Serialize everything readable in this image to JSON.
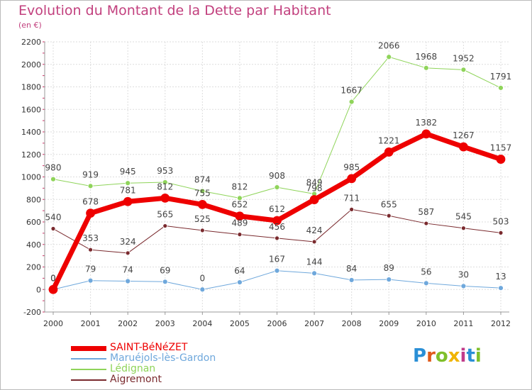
{
  "header": {
    "title": "Evolution du Montant de la Dette par Habitant",
    "subtitle": "(en €)"
  },
  "logo": {
    "text": "Proxiti"
  },
  "chart_data": {
    "type": "line",
    "title": "Evolution du Montant de la Dette par Habitant",
    "subtitle": "(en €)",
    "xlabel": "",
    "ylabel": "",
    "x": [
      2000,
      2001,
      2002,
      2003,
      2004,
      2005,
      2006,
      2007,
      2008,
      2009,
      2010,
      2011,
      2012
    ],
    "ylim": [
      -200,
      2200
    ],
    "yticks": [
      -200,
      0,
      200,
      400,
      600,
      800,
      1000,
      1200,
      1400,
      1600,
      1800,
      2000,
      2200
    ],
    "grid": true,
    "legend_position": "bottom-left",
    "series": [
      {
        "name": "Lédignan",
        "color": "#8fd45a",
        "values": [
          980,
          919,
          945,
          953,
          874,
          812,
          908,
          849,
          1667,
          2066,
          1968,
          1952,
          1791
        ]
      },
      {
        "name": "Aigremont",
        "color": "#7a2a2e",
        "values": [
          540,
          353,
          324,
          565,
          525,
          489,
          456,
          424,
          711,
          655,
          587,
          545,
          503
        ]
      },
      {
        "name": "Maruéjols-lès-Gardon",
        "color": "#6fa8dc",
        "values": [
          0,
          79,
          74,
          69,
          0,
          64,
          167,
          144,
          84,
          89,
          56,
          30,
          13
        ]
      },
      {
        "name": "SAINT-BéNéZET",
        "color": "#ee0000",
        "values": [
          0,
          678,
          781,
          812,
          755,
          652,
          612,
          798,
          985,
          1221,
          1382,
          1267,
          1157
        ]
      }
    ]
  }
}
